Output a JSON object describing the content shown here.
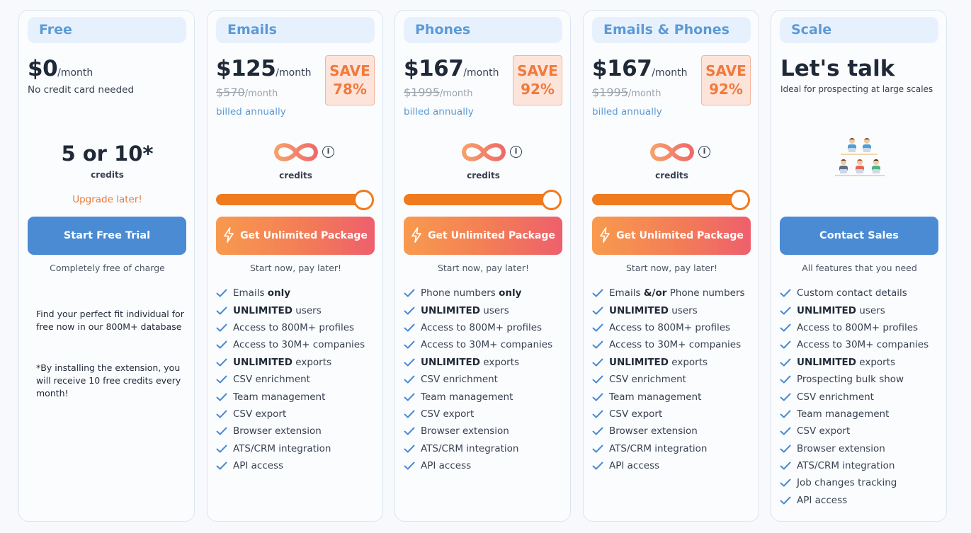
{
  "plans": [
    {
      "name": "Free",
      "price": "$0",
      "per": "/month",
      "note": "No credit card needed",
      "credits_value": "5 or 10*",
      "credits_label": "credits",
      "upgrade": "Upgrade later!",
      "button": "Start Free Trial",
      "below_button": "Completely free of charge",
      "text1": "Find your perfect fit individual for free now in our 800M+ database",
      "text2": "*By installing the extension, you will receive 10 free credits every month!"
    },
    {
      "name": "Emails",
      "price": "$125",
      "per": "/month",
      "old_price": "$570",
      "old_per": "/month",
      "billed": "billed annually",
      "save_word": "SAVE",
      "save_pct": "78%",
      "credits_label": "credits",
      "info": "i",
      "slider_fraction": 1.0,
      "button": "Get Unlimited Package",
      "below_button": "Start now, pay later!",
      "features": [
        {
          "pre": "Emails ",
          "bold": "only",
          "post": ""
        },
        {
          "pre": "",
          "bold": "UNLIMITED",
          "post": " users"
        },
        {
          "pre": "Access to 800M+ profiles",
          "bold": "",
          "post": ""
        },
        {
          "pre": "Access to 30M+ companies",
          "bold": "",
          "post": ""
        },
        {
          "pre": "",
          "bold": "UNLIMITED",
          "post": " exports"
        },
        {
          "pre": "CSV enrichment",
          "bold": "",
          "post": ""
        },
        {
          "pre": "Team management",
          "bold": "",
          "post": ""
        },
        {
          "pre": "CSV export",
          "bold": "",
          "post": ""
        },
        {
          "pre": "Browser extension",
          "bold": "",
          "post": ""
        },
        {
          "pre": "ATS/CRM integration",
          "bold": "",
          "post": ""
        },
        {
          "pre": "API access",
          "bold": "",
          "post": ""
        }
      ]
    },
    {
      "name": "Phones",
      "price": "$167",
      "per": "/month",
      "old_price": "$1995",
      "old_per": "/month",
      "billed": "billed annually",
      "save_word": "SAVE",
      "save_pct": "92%",
      "credits_label": "credits",
      "info": "i",
      "slider_fraction": 1.0,
      "button": "Get Unlimited Package",
      "below_button": "Start now, pay later!",
      "features": [
        {
          "pre": "Phone numbers ",
          "bold": "only",
          "post": ""
        },
        {
          "pre": "",
          "bold": "UNLIMITED",
          "post": " users"
        },
        {
          "pre": "Access to 800M+ profiles",
          "bold": "",
          "post": ""
        },
        {
          "pre": "Access to 30M+ companies",
          "bold": "",
          "post": ""
        },
        {
          "pre": "",
          "bold": "UNLIMITED",
          "post": " exports"
        },
        {
          "pre": "CSV enrichment",
          "bold": "",
          "post": ""
        },
        {
          "pre": "Team management",
          "bold": "",
          "post": ""
        },
        {
          "pre": "CSV export",
          "bold": "",
          "post": ""
        },
        {
          "pre": "Browser extension",
          "bold": "",
          "post": ""
        },
        {
          "pre": "ATS/CRM integration",
          "bold": "",
          "post": ""
        },
        {
          "pre": "API access",
          "bold": "",
          "post": ""
        }
      ]
    },
    {
      "name": "Emails & Phones",
      "price": "$167",
      "per": "/month",
      "old_price": "$1995",
      "old_per": "/month",
      "billed": "billed annually",
      "save_word": "SAVE",
      "save_pct": "92%",
      "credits_label": "credits",
      "info": "i",
      "slider_fraction": 1.0,
      "button": "Get Unlimited Package",
      "below_button": "Start now, pay later!",
      "features": [
        {
          "pre": "Emails ",
          "bold": "&/or",
          "post": " Phone numbers"
        },
        {
          "pre": "",
          "bold": "UNLIMITED",
          "post": " users"
        },
        {
          "pre": "Access to 800M+ profiles",
          "bold": "",
          "post": ""
        },
        {
          "pre": "Access to 30M+ companies",
          "bold": "",
          "post": ""
        },
        {
          "pre": "",
          "bold": "UNLIMITED",
          "post": " exports"
        },
        {
          "pre": "CSV enrichment",
          "bold": "",
          "post": ""
        },
        {
          "pre": "Team management",
          "bold": "",
          "post": ""
        },
        {
          "pre": "CSV export",
          "bold": "",
          "post": ""
        },
        {
          "pre": "Browser extension",
          "bold": "",
          "post": ""
        },
        {
          "pre": "ATS/CRM integration",
          "bold": "",
          "post": ""
        },
        {
          "pre": "API access",
          "bold": "",
          "post": ""
        }
      ]
    },
    {
      "name": "Scale",
      "headline": "Let's talk",
      "note": "Ideal for prospecting at large scales",
      "button": "Contact Sales",
      "below_button": "All features that you need",
      "features": [
        {
          "pre": "Custom contact details",
          "bold": "",
          "post": ""
        },
        {
          "pre": "",
          "bold": "UNLIMITED",
          "post": " users"
        },
        {
          "pre": "Access to 800M+ profiles",
          "bold": "",
          "post": ""
        },
        {
          "pre": "Access to 30M+ companies",
          "bold": "",
          "post": ""
        },
        {
          "pre": "",
          "bold": "UNLIMITED",
          "post": " exports"
        },
        {
          "pre": "Prospecting bulk show",
          "bold": "",
          "post": ""
        },
        {
          "pre": "CSV enrichment",
          "bold": "",
          "post": ""
        },
        {
          "pre": "Team management",
          "bold": "",
          "post": ""
        },
        {
          "pre": "CSV export",
          "bold": "",
          "post": ""
        },
        {
          "pre": "Browser extension",
          "bold": "",
          "post": ""
        },
        {
          "pre": "ATS/CRM integration",
          "bold": "",
          "post": ""
        },
        {
          "pre": "Job changes tracking",
          "bold": "",
          "post": ""
        },
        {
          "pre": "API access",
          "bold": "",
          "post": ""
        }
      ]
    }
  ],
  "colors": {
    "accent_blue": "#4a8bd3",
    "pill_text": "#5b9ad6",
    "accent_orange": "#f07a1e",
    "save_text": "#f07a3c",
    "check": "#4a8bd3"
  },
  "icons": {
    "infinity": "infinity-icon",
    "bolt": "lightning-bolt-icon",
    "check": "checkmark-icon",
    "info": "info-icon",
    "team": "team-people-illustration"
  }
}
